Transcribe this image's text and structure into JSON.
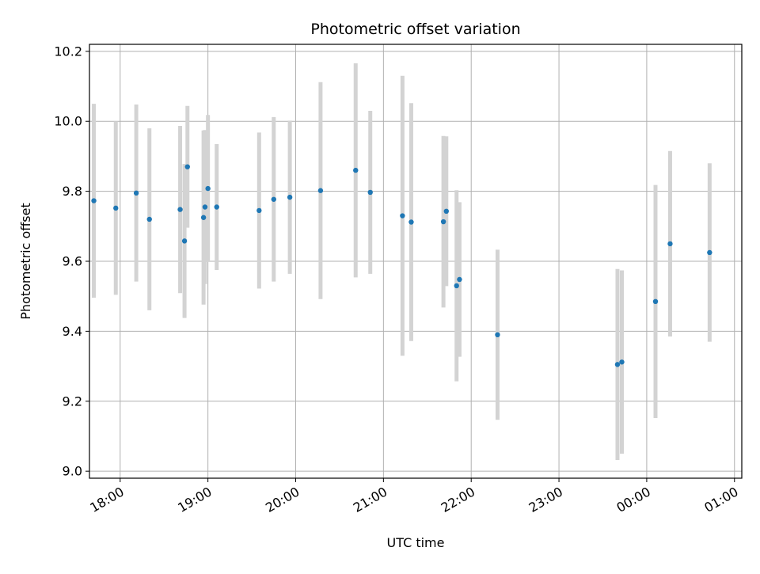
{
  "chart_data": {
    "type": "scatter",
    "title": "Photometric offset variation",
    "xlabel": "UTC time",
    "ylabel": "Photometric offset",
    "x_ticks": [
      "18:00",
      "19:00",
      "20:00",
      "21:00",
      "22:00",
      "23:00",
      "00:00",
      "01:00"
    ],
    "y_ticks": [
      "9.0",
      "9.2",
      "9.4",
      "9.6",
      "9.8",
      "10.0",
      "10.2"
    ],
    "xlim": [
      "17:39",
      "01:05"
    ],
    "ylim": [
      8.98,
      10.22
    ],
    "grid": true,
    "series": [
      {
        "marker_color": "#1f77b4",
        "errorbar_color": "#d3d3d3",
        "points": [
          {
            "x": "17:42",
            "y": 9.773,
            "err": 0.277
          },
          {
            "x": "17:57",
            "y": 9.752,
            "err": 0.248
          },
          {
            "x": "18:11",
            "y": 9.795,
            "err": 0.253
          },
          {
            "x": "18:20",
            "y": 9.72,
            "err": 0.26
          },
          {
            "x": "18:41",
            "y": 9.748,
            "err": 0.239
          },
          {
            "x": "18:44",
            "y": 9.658,
            "err": 0.22
          },
          {
            "x": "18:46",
            "y": 9.87,
            "err": 0.174
          },
          {
            "x": "18:57",
            "y": 9.725,
            "err": 0.249
          },
          {
            "x": "18:58",
            "y": 9.755,
            "err": 0.22
          },
          {
            "x": "19:00",
            "y": 9.808,
            "err": 0.21
          },
          {
            "x": "19:06",
            "y": 9.755,
            "err": 0.18
          },
          {
            "x": "19:35",
            "y": 9.745,
            "err": 0.223
          },
          {
            "x": "19:45",
            "y": 9.777,
            "err": 0.235
          },
          {
            "x": "19:56",
            "y": 9.783,
            "err": 0.219
          },
          {
            "x": "20:17",
            "y": 9.802,
            "err": 0.31
          },
          {
            "x": "20:41",
            "y": 9.86,
            "err": 0.306
          },
          {
            "x": "20:51",
            "y": 9.797,
            "err": 0.233
          },
          {
            "x": "21:13",
            "y": 9.73,
            "err": 0.4
          },
          {
            "x": "21:19",
            "y": 9.712,
            "err": 0.34
          },
          {
            "x": "21:41",
            "y": 9.713,
            "err": 0.245
          },
          {
            "x": "21:43",
            "y": 9.743,
            "err": 0.214
          },
          {
            "x": "21:50",
            "y": 9.53,
            "err": 0.273
          },
          {
            "x": "21:52",
            "y": 9.548,
            "err": 0.221
          },
          {
            "x": "22:18",
            "y": 9.39,
            "err": 0.243
          },
          {
            "x": "23:40",
            "y": 9.305,
            "err": 0.273
          },
          {
            "x": "23:43",
            "y": 9.312,
            "err": 0.262
          },
          {
            "x": "00:06",
            "y": 9.485,
            "err": 0.333
          },
          {
            "x": "00:16",
            "y": 9.65,
            "err": 0.265
          },
          {
            "x": "00:43",
            "y": 9.625,
            "err": 0.255
          }
        ]
      }
    ]
  }
}
